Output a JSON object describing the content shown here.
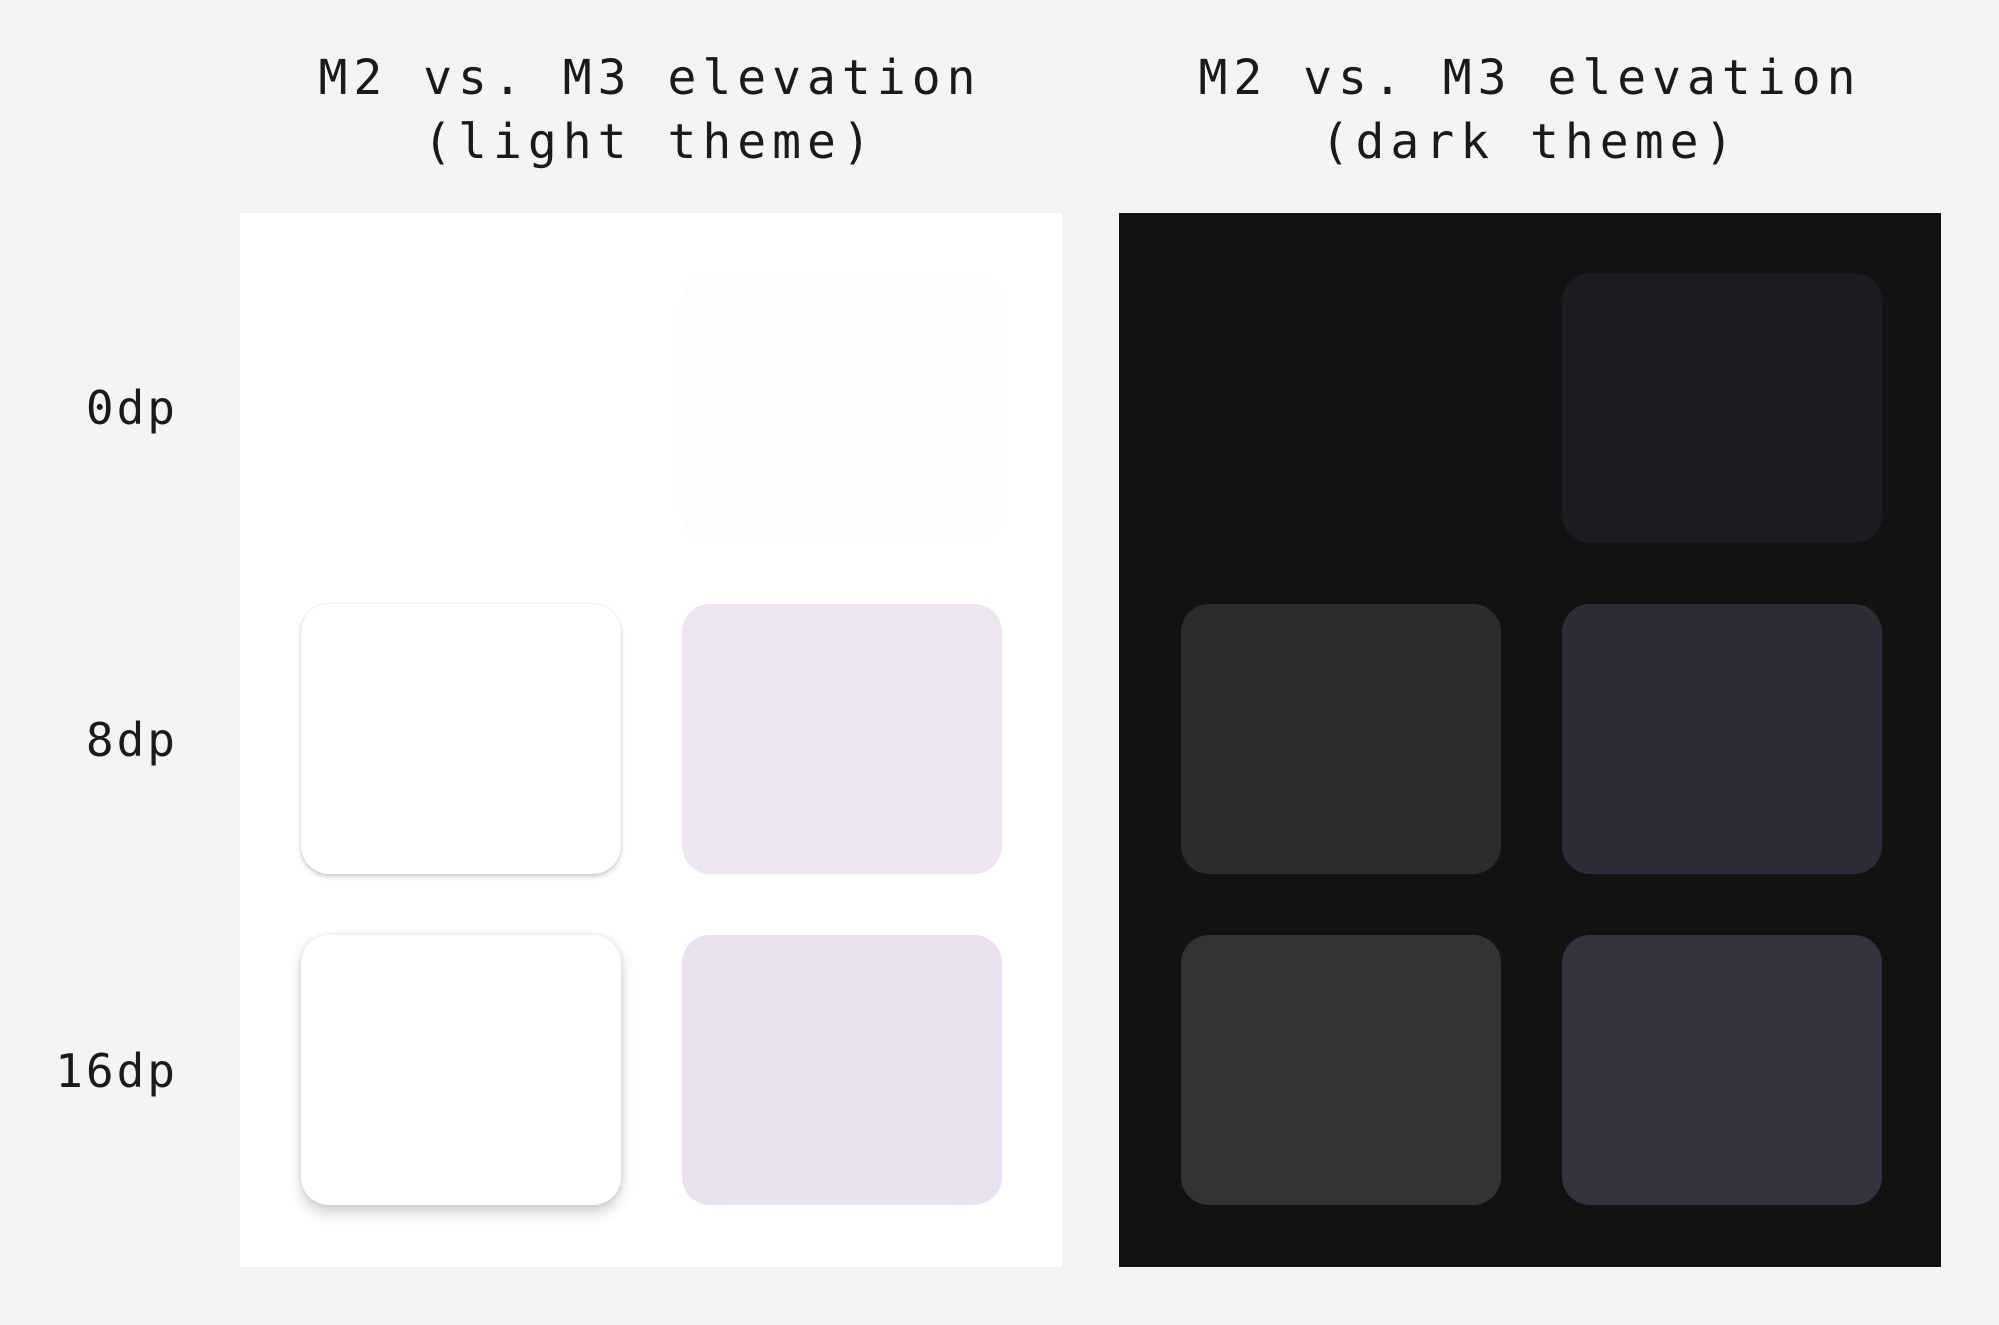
{
  "titles": {
    "light": "M2 vs. M3 elevation\n(light theme)",
    "dark": "M2 vs. M3 elevation\n(dark theme)"
  },
  "rows": [
    "0dp",
    "8dp",
    "16dp"
  ],
  "colors": {
    "page_bg": "#f4f4f4",
    "light_panel": "#ffffff",
    "dark_panel": "#121212",
    "light_m2": [
      "none",
      "#ffffff",
      "#ffffff"
    ],
    "light_m3": [
      "#fffbfe",
      "#ede6f1",
      "#e8e2f0"
    ],
    "dark_m2": [
      "none",
      "#2c2c2c",
      "#333333"
    ],
    "dark_m3": [
      "#1c1b1f",
      "#2f2c37",
      "#363240"
    ]
  }
}
